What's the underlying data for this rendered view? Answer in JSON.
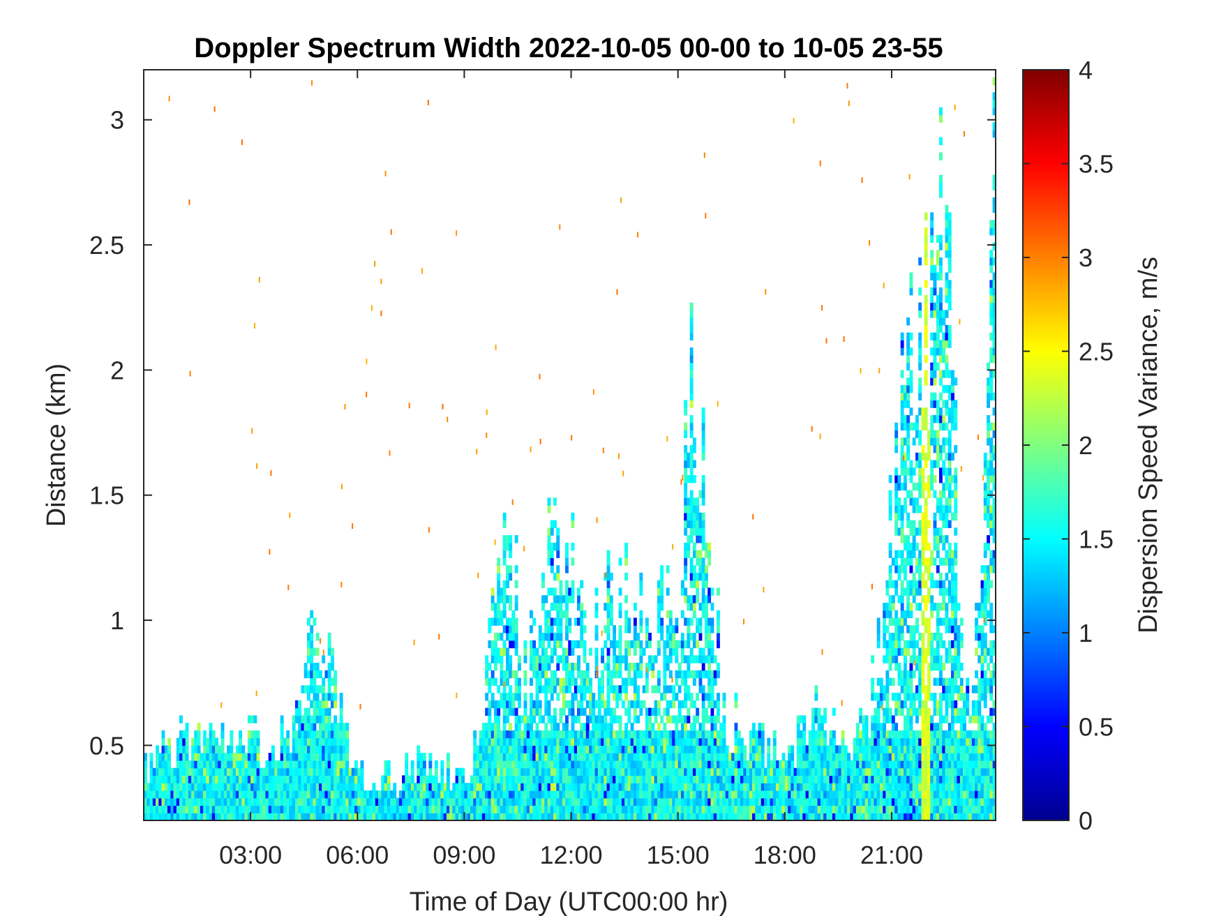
{
  "chart_data": {
    "type": "heatmap",
    "title": "Doppler Spectrum Width 2022-10-05 00-00 to 10-05 23-55",
    "xlabel": "Time of Day (UTC00:00 hr)",
    "ylabel": "Distance (km)",
    "colorbar_label": "Dispersion Speed Variance, m/s",
    "colormap": "jet",
    "xlim": [
      0,
      23.92
    ],
    "ylim": [
      0.2,
      3.2
    ],
    "clim": [
      0,
      4
    ],
    "x_ticks": [
      3,
      6,
      9,
      12,
      15,
      18,
      21
    ],
    "x_tick_labels": [
      "03:00",
      "06:00",
      "09:00",
      "12:00",
      "15:00",
      "18:00",
      "21:00"
    ],
    "y_ticks": [
      0.5,
      1,
      1.5,
      2,
      2.5,
      3
    ],
    "y_tick_labels": [
      "0.5",
      "1",
      "1.5",
      "2",
      "2.5",
      "3"
    ],
    "c_ticks": [
      0,
      0.5,
      1,
      1.5,
      2,
      2.5,
      3,
      3.5,
      4
    ],
    "c_tick_labels": [
      "0",
      "0.5",
      "1",
      "1.5",
      "2",
      "2.5",
      "3",
      "3.5",
      "4"
    ],
    "grid": false,
    "data_summary": {
      "background_value_range": [
        1.2,
        1.8
      ],
      "signal_top_km_by_hour": [
        [
          0.0,
          0.45
        ],
        [
          1.0,
          0.5
        ],
        [
          2.0,
          0.48
        ],
        [
          3.0,
          0.52
        ],
        [
          4.0,
          0.5
        ],
        [
          4.8,
          1.05
        ],
        [
          5.5,
          0.6
        ],
        [
          6.0,
          0.4
        ],
        [
          7.0,
          0.35
        ],
        [
          8.0,
          0.45
        ],
        [
          9.0,
          0.35
        ],
        [
          9.7,
          0.9
        ],
        [
          10.2,
          1.6
        ],
        [
          10.6,
          0.7
        ],
        [
          11.0,
          1.1
        ],
        [
          11.5,
          1.35
        ],
        [
          12.0,
          1.3
        ],
        [
          12.5,
          0.9
        ],
        [
          13.0,
          1.2
        ],
        [
          13.5,
          1.15
        ],
        [
          14.0,
          1.05
        ],
        [
          14.5,
          1.0
        ],
        [
          15.0,
          1.2
        ],
        [
          15.3,
          2.1
        ],
        [
          15.8,
          1.5
        ],
        [
          16.3,
          0.6
        ],
        [
          17.0,
          0.55
        ],
        [
          18.0,
          0.45
        ],
        [
          19.0,
          0.65
        ],
        [
          20.0,
          0.5
        ],
        [
          20.5,
          0.75
        ],
        [
          21.0,
          1.6
        ],
        [
          21.5,
          2.0
        ],
        [
          22.0,
          2.3
        ],
        [
          22.5,
          2.7
        ],
        [
          23.0,
          0.6
        ],
        [
          23.4,
          1.0
        ],
        [
          23.8,
          3.1
        ]
      ],
      "high_value_column_hour": 21.9,
      "high_value_column_value": 2.5
    }
  }
}
